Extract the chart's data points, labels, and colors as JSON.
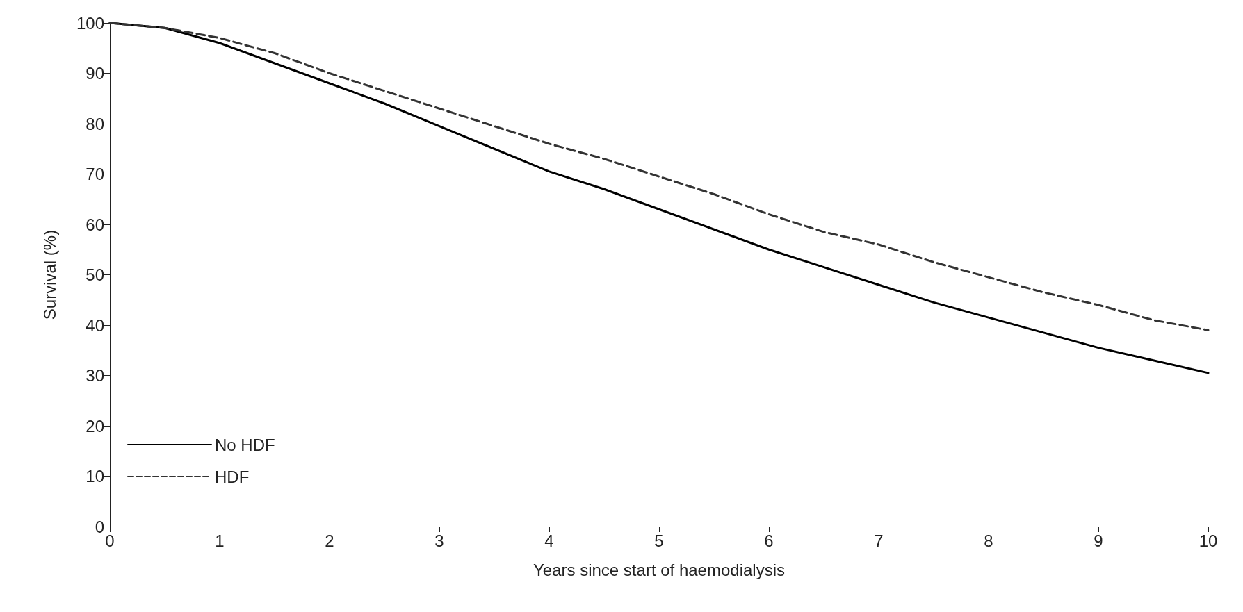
{
  "chart_data": {
    "type": "line",
    "xlabel": "Years since start of haemodialysis",
    "ylabel": "Survival (%)",
    "x": [
      0,
      0.5,
      1,
      1.5,
      2,
      2.5,
      3,
      3.5,
      4,
      4.5,
      5,
      5.5,
      6,
      6.5,
      7,
      7.5,
      8,
      8.5,
      9,
      9.5,
      10
    ],
    "series": [
      {
        "name": "No HDF",
        "color": "#000000",
        "line_style": "solid",
        "values": [
          100,
          99,
          96,
          92,
          88,
          84,
          79.5,
          75,
          70.5,
          67,
          63,
          59,
          55,
          51.5,
          48,
          44.5,
          41.5,
          38.5,
          35.5,
          33,
          30.5
        ]
      },
      {
        "name": "HDF",
        "color": "#333333",
        "line_style": "dashed",
        "values": [
          100,
          99,
          97,
          94,
          90,
          86.5,
          83,
          79.5,
          76,
          73,
          69.5,
          66,
          62,
          58.5,
          56,
          52.5,
          49.5,
          46.5,
          44,
          41,
          39
        ]
      }
    ],
    "xlim": [
      0,
      10
    ],
    "xticks": [
      0,
      1,
      2,
      3,
      4,
      5,
      6,
      7,
      8,
      9,
      10
    ],
    "ylim": [
      0,
      100
    ],
    "yticks": [
      0,
      10,
      20,
      30,
      40,
      50,
      60,
      70,
      80,
      90,
      100
    ],
    "grid": false,
    "legend": "bottom left",
    "marker": "none"
  }
}
